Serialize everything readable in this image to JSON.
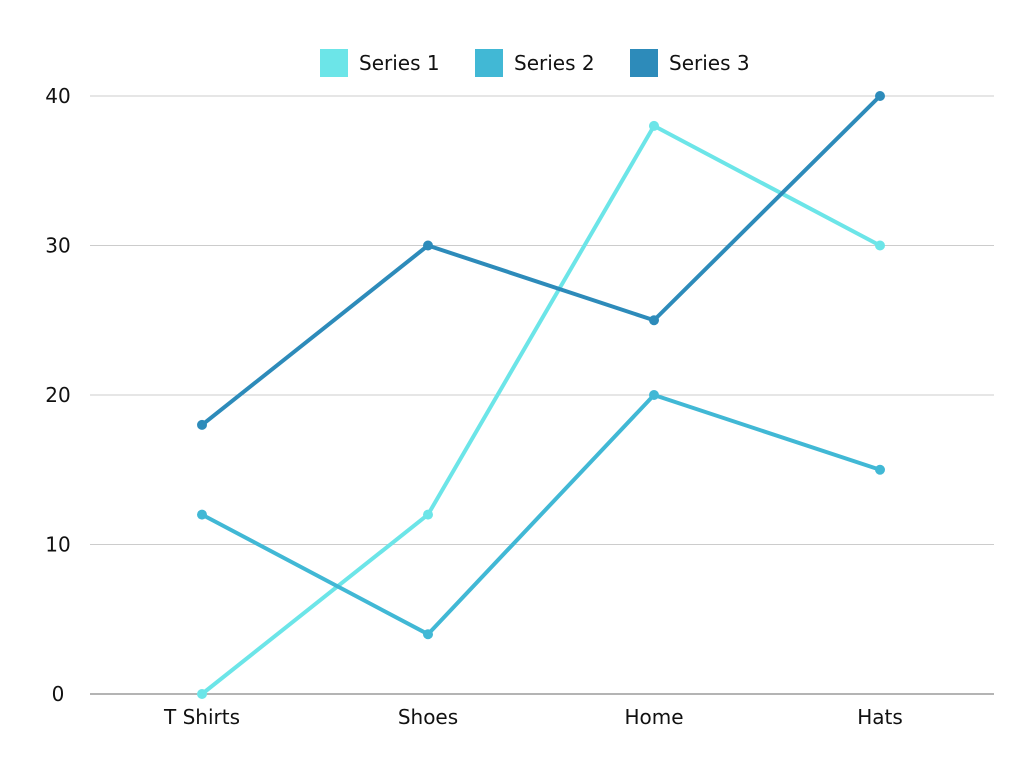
{
  "chart_data": {
    "type": "line",
    "categories": [
      "T Shirts",
      "Shoes",
      "Home",
      "Hats"
    ],
    "series": [
      {
        "name": "Series 1",
        "color": "#6ce5e8",
        "values": [
          0,
          12,
          38,
          30
        ]
      },
      {
        "name": "Series 2",
        "color": "#41b8d5",
        "values": [
          12,
          4,
          20,
          15
        ]
      },
      {
        "name": "Series 3",
        "color": "#2d8bba",
        "values": [
          18,
          30,
          25,
          40
        ]
      }
    ],
    "yticks": [
      0,
      10,
      20,
      30,
      40
    ],
    "ylim": [
      0,
      40
    ],
    "grid": true,
    "legend": "top-center",
    "colors": {
      "gridline": "#cccccc",
      "axis": "#888888",
      "text": "#111111"
    }
  }
}
